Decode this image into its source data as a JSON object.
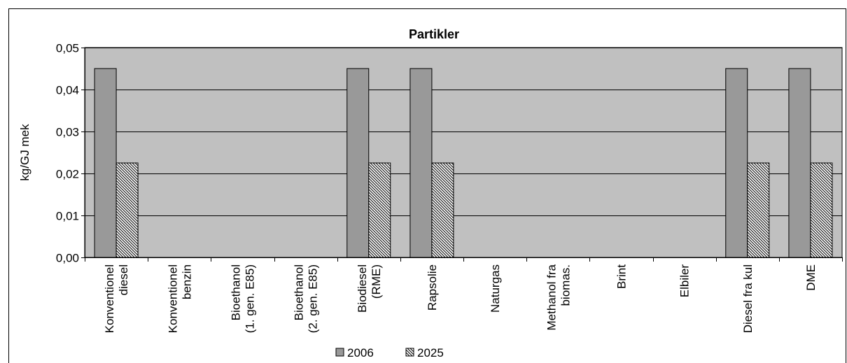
{
  "chart_data": {
    "type": "bar",
    "title": "Partikler",
    "xlabel": "",
    "ylabel": "kg/GJ mek",
    "ylim": [
      0,
      0.05
    ],
    "yticks": [
      "0,00",
      "0,01",
      "0,02",
      "0,03",
      "0,04",
      "0,05"
    ],
    "ytick_values": [
      0,
      0.01,
      0.02,
      0.03,
      0.04,
      0.05
    ],
    "grid": true,
    "legend_position": "bottom",
    "categories": [
      [
        "Konventionel",
        "diesel"
      ],
      [
        "Konventionel",
        "benzin"
      ],
      [
        "Bioethanol",
        "(1. gen. E85)"
      ],
      [
        "Bioethanol",
        "(2. gen. E85)"
      ],
      [
        "Biodiesel",
        "(RME)"
      ],
      [
        "Rapsolie"
      ],
      [
        "Naturgas"
      ],
      [
        "Methanol fra",
        "biomas."
      ],
      [
        "Brint"
      ],
      [
        "Elbiler"
      ],
      [
        "Diesel fra kul"
      ],
      [
        "DME"
      ]
    ],
    "series": [
      {
        "name": "2006",
        "color": "#999999",
        "pattern": "solid",
        "values": [
          0.045,
          0,
          0,
          0,
          0.045,
          0.045,
          0,
          0,
          0,
          0,
          0.045,
          0.045
        ]
      },
      {
        "name": "2025",
        "color": "#ffffff",
        "pattern": "diagonal-hatch",
        "values": [
          0.0225,
          0,
          0,
          0,
          0.0225,
          0.0225,
          0,
          0,
          0,
          0,
          0.0225,
          0.0225
        ]
      }
    ]
  }
}
